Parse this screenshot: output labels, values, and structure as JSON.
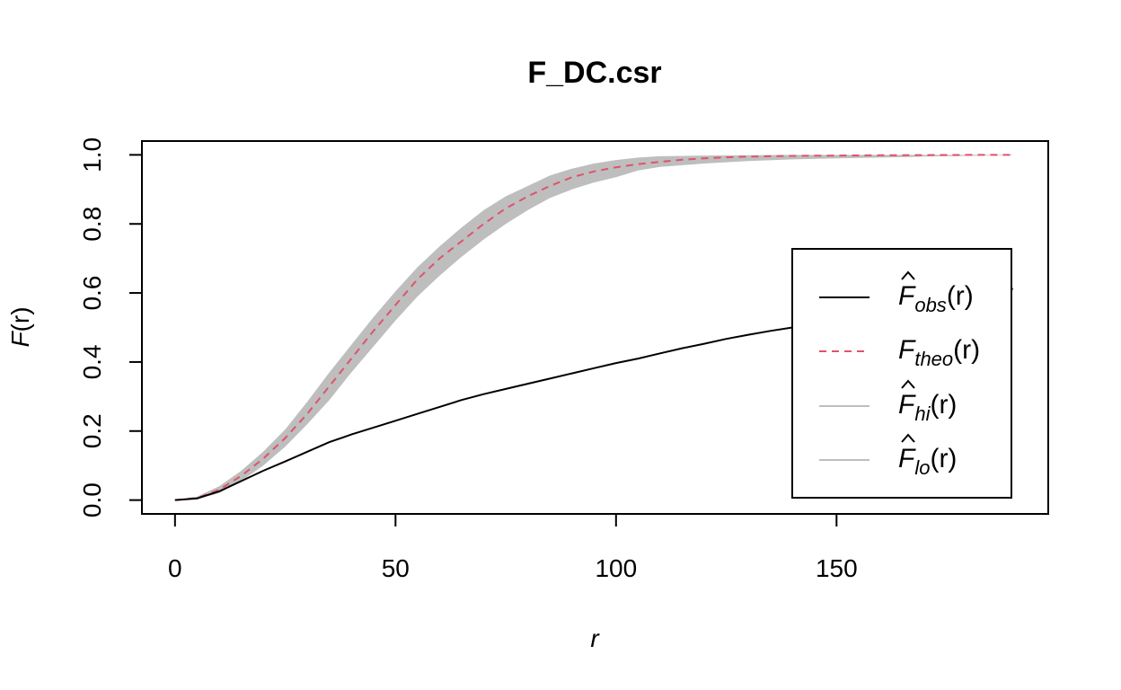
{
  "chart_data": {
    "type": "line",
    "title": "F_DC.csr",
    "xlabel": "r",
    "ylabel_main": "F",
    "ylabel_arg": "(r)",
    "xlim": [
      -7.5,
      198
    ],
    "ylim": [
      -0.04,
      1.04
    ],
    "x_ticks": [
      0,
      50,
      100,
      150
    ],
    "y_ticks": [
      0.0,
      0.2,
      0.4,
      0.6,
      0.8,
      1.0
    ],
    "x_tick_labels": [
      "0",
      "50",
      "100",
      "150"
    ],
    "y_tick_labels": [
      "0.0",
      "0.2",
      "0.4",
      "0.6",
      "0.8",
      "1.0"
    ],
    "legend_position": "bottom-right",
    "colors": {
      "obs": "#000000",
      "theo": "#DF536B",
      "envelope": "#BEBEBE"
    },
    "series": [
      {
        "key": "obs",
        "legend_main": "F",
        "legend_sub": "obs",
        "legend_arg": "(r)",
        "hat": true,
        "style": "solid",
        "x": [
          0,
          5,
          10,
          15,
          20,
          25,
          30,
          35,
          40,
          45,
          50,
          55,
          60,
          65,
          70,
          75,
          80,
          85,
          90,
          95,
          100,
          105,
          110,
          115,
          120,
          125,
          130,
          135,
          140,
          145,
          150,
          155,
          160,
          165,
          170,
          175,
          180,
          185,
          190
        ],
        "values": [
          0.0,
          0.005,
          0.025,
          0.055,
          0.085,
          0.112,
          0.14,
          0.168,
          0.19,
          0.21,
          0.23,
          0.25,
          0.27,
          0.29,
          0.307,
          0.322,
          0.337,
          0.352,
          0.367,
          0.382,
          0.397,
          0.41,
          0.425,
          0.44,
          0.453,
          0.467,
          0.479,
          0.49,
          0.5,
          0.512,
          0.525,
          0.536,
          0.546,
          0.557,
          0.568,
          0.58,
          0.591,
          0.602,
          0.612
        ]
      },
      {
        "key": "theo",
        "legend_main": "F",
        "legend_sub": "theo",
        "legend_arg": "(r)",
        "hat": false,
        "style": "dashed",
        "x": [
          0,
          5,
          10,
          15,
          20,
          25,
          30,
          35,
          40,
          45,
          50,
          55,
          60,
          65,
          70,
          75,
          80,
          85,
          90,
          95,
          100,
          105,
          110,
          115,
          120,
          125,
          130,
          140,
          150,
          160,
          170,
          180,
          190
        ],
        "values": [
          0.0,
          0.006,
          0.03,
          0.07,
          0.12,
          0.18,
          0.25,
          0.33,
          0.41,
          0.49,
          0.565,
          0.64,
          0.7,
          0.75,
          0.8,
          0.845,
          0.88,
          0.91,
          0.935,
          0.952,
          0.964,
          0.973,
          0.98,
          0.986,
          0.99,
          0.993,
          0.995,
          0.997,
          0.998,
          0.999,
          0.9995,
          0.9998,
          1.0
        ]
      },
      {
        "key": "hi",
        "legend_main": "F",
        "legend_sub": "hi",
        "legend_arg": "(r)",
        "hat": true,
        "style": "band-upper",
        "x": [
          0,
          5,
          10,
          15,
          20,
          25,
          30,
          35,
          40,
          45,
          50,
          55,
          60,
          65,
          70,
          75,
          80,
          85,
          90,
          95,
          100,
          105,
          110,
          120,
          130,
          140,
          150,
          160,
          170,
          180,
          190
        ],
        "values": [
          0.0,
          0.01,
          0.04,
          0.085,
          0.14,
          0.205,
          0.285,
          0.37,
          0.45,
          0.53,
          0.605,
          0.675,
          0.735,
          0.79,
          0.84,
          0.88,
          0.91,
          0.94,
          0.96,
          0.975,
          0.985,
          0.992,
          0.996,
          0.998,
          0.999,
          1.0,
          1.0,
          1.0,
          1.0,
          1.0,
          1.0
        ]
      },
      {
        "key": "lo",
        "legend_main": "F",
        "legend_sub": "lo",
        "legend_arg": "(r)",
        "hat": true,
        "style": "band-lower",
        "x": [
          0,
          5,
          10,
          15,
          20,
          25,
          30,
          35,
          40,
          45,
          50,
          55,
          60,
          65,
          70,
          75,
          80,
          85,
          90,
          95,
          100,
          105,
          110,
          120,
          130,
          140,
          150,
          160,
          170,
          180,
          190
        ],
        "values": [
          0.0,
          0.003,
          0.02,
          0.055,
          0.1,
          0.155,
          0.22,
          0.29,
          0.37,
          0.445,
          0.52,
          0.59,
          0.65,
          0.705,
          0.755,
          0.8,
          0.84,
          0.875,
          0.9,
          0.92,
          0.935,
          0.955,
          0.965,
          0.975,
          0.982,
          0.987,
          0.99,
          0.992,
          0.995,
          0.997,
          0.999
        ]
      }
    ]
  }
}
